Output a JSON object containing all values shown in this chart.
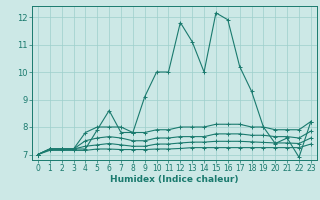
{
  "xlabel": "Humidex (Indice chaleur)",
  "bg_color": "#cce8e6",
  "grid_color": "#9ecfcc",
  "line_color": "#1a7a6e",
  "spine_color": "#1a7a6e",
  "xlim": [
    -0.5,
    23.5
  ],
  "ylim": [
    6.8,
    12.4
  ],
  "xticks": [
    0,
    1,
    2,
    3,
    4,
    5,
    6,
    7,
    8,
    9,
    10,
    11,
    12,
    13,
    14,
    15,
    16,
    17,
    18,
    19,
    20,
    21,
    22,
    23
  ],
  "yticks": [
    7,
    8,
    9,
    10,
    11,
    12
  ],
  "series": [
    [
      7.0,
      7.2,
      7.2,
      7.2,
      7.2,
      7.9,
      8.6,
      7.8,
      7.8,
      9.1,
      10.0,
      10.0,
      11.8,
      11.1,
      10.0,
      12.15,
      11.9,
      10.2,
      9.3,
      8.0,
      7.4,
      7.6,
      6.9,
      8.2
    ],
    [
      7.0,
      7.2,
      7.2,
      7.2,
      7.8,
      8.0,
      8.0,
      8.0,
      7.8,
      7.8,
      7.9,
      7.9,
      8.0,
      8.0,
      8.0,
      8.1,
      8.1,
      8.1,
      8.0,
      8.0,
      7.9,
      7.9,
      7.9,
      8.2
    ],
    [
      7.0,
      7.2,
      7.2,
      7.2,
      7.5,
      7.6,
      7.65,
      7.6,
      7.5,
      7.5,
      7.6,
      7.6,
      7.65,
      7.65,
      7.65,
      7.75,
      7.75,
      7.75,
      7.7,
      7.7,
      7.65,
      7.65,
      7.6,
      7.85
    ],
    [
      7.0,
      7.2,
      7.2,
      7.2,
      7.3,
      7.35,
      7.4,
      7.35,
      7.3,
      7.3,
      7.38,
      7.38,
      7.42,
      7.45,
      7.45,
      7.48,
      7.48,
      7.48,
      7.46,
      7.44,
      7.42,
      7.42,
      7.4,
      7.6
    ],
    [
      7.0,
      7.15,
      7.15,
      7.15,
      7.15,
      7.2,
      7.2,
      7.18,
      7.18,
      7.18,
      7.2,
      7.2,
      7.22,
      7.25,
      7.25,
      7.25,
      7.25,
      7.25,
      7.25,
      7.25,
      7.25,
      7.25,
      7.25,
      7.38
    ]
  ],
  "marker": "+",
  "markersize": 3,
  "linewidth": 0.8,
  "tick_fontsize": 5.5,
  "xlabel_fontsize": 6.5
}
